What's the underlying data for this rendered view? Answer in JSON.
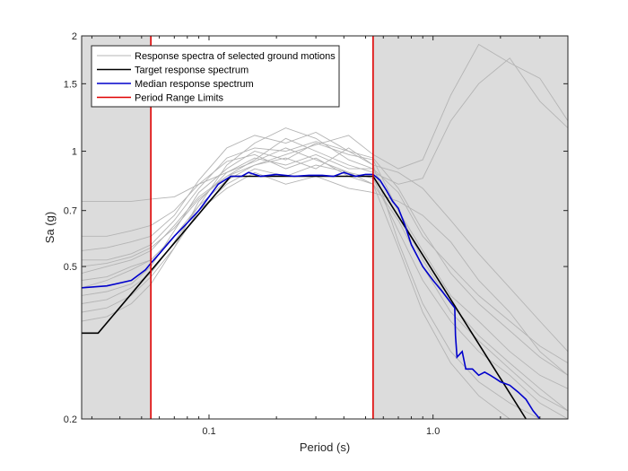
{
  "chart_data": {
    "type": "line",
    "title": "",
    "xlabel": "Period (s)",
    "ylabel": "Sa (g)",
    "xscale": "log",
    "yscale": "log",
    "xlim": [
      0.027,
      4.0
    ],
    "ylim": [
      0.2,
      2.0
    ],
    "x_ticks": [
      0.1,
      1.0
    ],
    "x_tick_labels": [
      "0.1",
      "1.0"
    ],
    "y_ticks": [
      0.2,
      0.5,
      0.7,
      1.0,
      1.5,
      2.0
    ],
    "y_tick_labels": [
      "0.2",
      "0.5",
      "0.7",
      "1",
      "1.5",
      "2"
    ],
    "grid": false,
    "legend_position": "top-left",
    "shaded_regions": [
      {
        "x_start": 0.027,
        "x_end": 0.055,
        "color": "#dcdcdc"
      },
      {
        "x_start": 0.54,
        "x_end": 4.0,
        "color": "#dcdcdc"
      }
    ],
    "colors": {
      "ground_motions": "#b4b4b4",
      "target": "#000000",
      "median": "#0000cc",
      "period_limits": "#e00000",
      "shade": "#dcdcdc"
    },
    "series": [
      {
        "name": "Response spectra of selected ground motions",
        "kind": "ground_motions",
        "lines": [
          {
            "x": [
              0.027,
              0.035,
              0.045,
              0.055,
              0.07,
              0.09,
              0.12,
              0.16,
              0.22,
              0.3,
              0.42,
              0.54,
              0.7,
              0.9,
              1.2,
              1.6,
              2.2,
              3.0,
              4.0
            ],
            "y": [
              0.42,
              0.43,
              0.45,
              0.5,
              0.62,
              0.78,
              0.9,
              1.0,
              0.95,
              1.05,
              0.98,
              0.95,
              0.7,
              0.55,
              0.42,
              0.36,
              0.3,
              0.26,
              0.24
            ]
          },
          {
            "x": [
              0.027,
              0.035,
              0.045,
              0.055,
              0.07,
              0.09,
              0.12,
              0.16,
              0.22,
              0.3,
              0.42,
              0.54,
              0.7,
              0.9,
              1.2,
              1.6,
              2.2,
              3.0,
              4.0
            ],
            "y": [
              0.38,
              0.39,
              0.42,
              0.47,
              0.56,
              0.7,
              0.82,
              0.9,
              0.86,
              0.92,
              0.88,
              0.85,
              0.62,
              0.46,
              0.36,
              0.3,
              0.26,
              0.22,
              0.2
            ]
          },
          {
            "x": [
              0.027,
              0.035,
              0.045,
              0.055,
              0.07,
              0.09,
              0.12,
              0.16,
              0.22,
              0.3,
              0.42,
              0.54,
              0.7,
              0.9,
              1.2,
              1.6,
              2.2,
              3.0,
              4.0
            ],
            "y": [
              0.74,
              0.74,
              0.74,
              0.75,
              0.76,
              0.82,
              0.88,
              0.96,
              0.92,
              0.98,
              0.9,
              0.9,
              0.78,
              0.6,
              0.5,
              0.42,
              0.36,
              0.31,
              0.28
            ]
          },
          {
            "x": [
              0.027,
              0.035,
              0.045,
              0.055,
              0.07,
              0.09,
              0.12,
              0.16,
              0.22,
              0.3,
              0.42,
              0.54,
              0.7,
              0.9,
              1.2,
              1.6,
              2.2,
              3.0,
              4.0
            ],
            "y": [
              0.55,
              0.56,
              0.58,
              0.6,
              0.68,
              0.84,
              1.02,
              1.1,
              1.05,
              1.12,
              1.0,
              0.92,
              0.58,
              0.4,
              0.3,
              0.25,
              0.22,
              0.2,
              0.2
            ]
          },
          {
            "x": [
              0.027,
              0.035,
              0.045,
              0.055,
              0.07,
              0.09,
              0.12,
              0.16,
              0.22,
              0.3,
              0.42,
              0.54,
              0.7,
              0.9,
              1.2,
              1.6,
              2.2,
              3.0,
              4.0
            ],
            "y": [
              0.48,
              0.5,
              0.52,
              0.55,
              0.64,
              0.76,
              0.86,
              0.95,
              1.08,
              1.0,
              0.92,
              0.88,
              0.82,
              0.85,
              1.2,
              1.5,
              1.75,
              1.35,
              1.15
            ]
          },
          {
            "x": [
              0.027,
              0.035,
              0.045,
              0.055,
              0.07,
              0.09,
              0.12,
              0.16,
              0.22,
              0.3,
              0.42,
              0.54,
              0.7,
              0.9,
              1.2,
              1.6,
              2.2,
              3.0,
              4.0
            ],
            "y": [
              0.44,
              0.46,
              0.49,
              0.52,
              0.6,
              0.72,
              0.84,
              0.92,
              0.98,
              1.04,
              1.1,
              0.98,
              0.9,
              0.95,
              1.4,
              1.9,
              1.7,
              1.55,
              1.2
            ]
          },
          {
            "x": [
              0.027,
              0.035,
              0.045,
              0.055,
              0.07,
              0.09,
              0.12,
              0.16,
              0.22,
              0.3,
              0.42,
              0.54,
              0.7,
              0.9,
              1.2,
              1.6,
              2.2,
              3.0,
              4.0
            ],
            "y": [
              0.6,
              0.6,
              0.62,
              0.64,
              0.7,
              0.82,
              0.94,
              0.98,
              0.9,
              0.96,
              0.86,
              0.82,
              0.66,
              0.5,
              0.38,
              0.32,
              0.27,
              0.23,
              0.21
            ]
          },
          {
            "x": [
              0.027,
              0.035,
              0.045,
              0.055,
              0.07,
              0.09,
              0.12,
              0.16,
              0.22,
              0.3,
              0.42,
              0.54,
              0.7,
              0.9,
              1.2,
              1.6,
              2.2,
              3.0,
              4.0
            ],
            "y": [
              0.4,
              0.41,
              0.44,
              0.48,
              0.58,
              0.72,
              0.92,
              1.05,
              1.15,
              1.08,
              0.95,
              0.9,
              0.7,
              0.52,
              0.4,
              0.33,
              0.28,
              0.24,
              0.21
            ]
          },
          {
            "x": [
              0.027,
              0.035,
              0.045,
              0.055,
              0.07,
              0.09,
              0.12,
              0.16,
              0.22,
              0.3,
              0.42,
              0.54,
              0.7,
              0.9,
              1.2,
              1.6,
              2.2,
              3.0,
              4.0
            ],
            "y": [
              0.46,
              0.47,
              0.5,
              0.52,
              0.6,
              0.7,
              0.8,
              0.88,
              0.82,
              0.86,
              0.8,
              0.78,
              0.74,
              0.68,
              0.58,
              0.46,
              0.38,
              0.3,
              0.26
            ]
          },
          {
            "x": [
              0.027,
              0.035,
              0.045,
              0.055,
              0.07,
              0.09,
              0.12,
              0.16,
              0.22,
              0.3,
              0.42,
              0.54,
              0.7,
              0.9,
              1.2,
              1.6,
              2.2,
              3.0,
              4.0
            ],
            "y": [
              0.52,
              0.52,
              0.54,
              0.57,
              0.66,
              0.8,
              0.96,
              1.02,
              1.0,
              1.06,
              1.0,
              0.96,
              0.8,
              0.62,
              0.48,
              0.4,
              0.34,
              0.29,
              0.26
            ]
          },
          {
            "x": [
              0.027,
              0.035,
              0.045,
              0.055,
              0.07,
              0.09,
              0.12,
              0.16,
              0.22,
              0.3,
              0.42,
              0.54,
              0.7,
              0.9,
              1.2,
              1.6,
              2.2,
              3.0,
              4.0
            ],
            "y": [
              0.36,
              0.37,
              0.4,
              0.45,
              0.56,
              0.74,
              0.88,
              0.94,
              1.02,
              0.95,
              0.88,
              0.82,
              0.56,
              0.38,
              0.28,
              0.23,
              0.2,
              0.2,
              0.2
            ]
          },
          {
            "x": [
              0.027,
              0.035,
              0.045,
              0.055,
              0.07,
              0.09,
              0.12,
              0.16,
              0.22,
              0.3,
              0.42,
              0.54,
              0.7,
              0.9,
              1.2,
              1.6,
              2.2,
              3.0,
              4.0
            ],
            "y": [
              0.5,
              0.51,
              0.53,
              0.56,
              0.63,
              0.75,
              0.86,
              0.92,
              0.96,
              0.9,
              1.02,
              0.92,
              0.88,
              0.8,
              0.66,
              0.54,
              0.44,
              0.36,
              0.3
            ]
          }
        ]
      },
      {
        "name": "Target response spectrum",
        "kind": "target",
        "x": [
          0.027,
          0.032,
          0.125,
          0.54,
          2.6
        ],
        "y": [
          0.335,
          0.335,
          0.86,
          0.86,
          0.2
        ]
      },
      {
        "name": "Median response spectrum",
        "kind": "median",
        "x": [
          0.027,
          0.035,
          0.045,
          0.052,
          0.055,
          0.06,
          0.07,
          0.08,
          0.09,
          0.1,
          0.11,
          0.125,
          0.14,
          0.15,
          0.17,
          0.2,
          0.24,
          0.28,
          0.32,
          0.36,
          0.4,
          0.45,
          0.5,
          0.54,
          0.58,
          0.62,
          0.66,
          0.7,
          0.75,
          0.8,
          0.9,
          1.0,
          1.1,
          1.25,
          1.26,
          1.28,
          1.35,
          1.4,
          1.5,
          1.6,
          1.7,
          1.8,
          1.9,
          2.0,
          2.2,
          2.4,
          2.6,
          2.8,
          3.0
        ],
        "y": [
          0.44,
          0.445,
          0.46,
          0.49,
          0.51,
          0.54,
          0.6,
          0.65,
          0.7,
          0.76,
          0.82,
          0.86,
          0.86,
          0.88,
          0.86,
          0.87,
          0.86,
          0.865,
          0.865,
          0.86,
          0.88,
          0.86,
          0.87,
          0.87,
          0.84,
          0.79,
          0.74,
          0.71,
          0.64,
          0.57,
          0.5,
          0.46,
          0.43,
          0.39,
          0.33,
          0.29,
          0.3,
          0.27,
          0.27,
          0.26,
          0.265,
          0.26,
          0.255,
          0.25,
          0.245,
          0.235,
          0.225,
          0.21,
          0.2
        ]
      },
      {
        "name": "Period Range Limits",
        "kind": "period_limits",
        "vlines": [
          0.055,
          0.54
        ]
      }
    ]
  }
}
